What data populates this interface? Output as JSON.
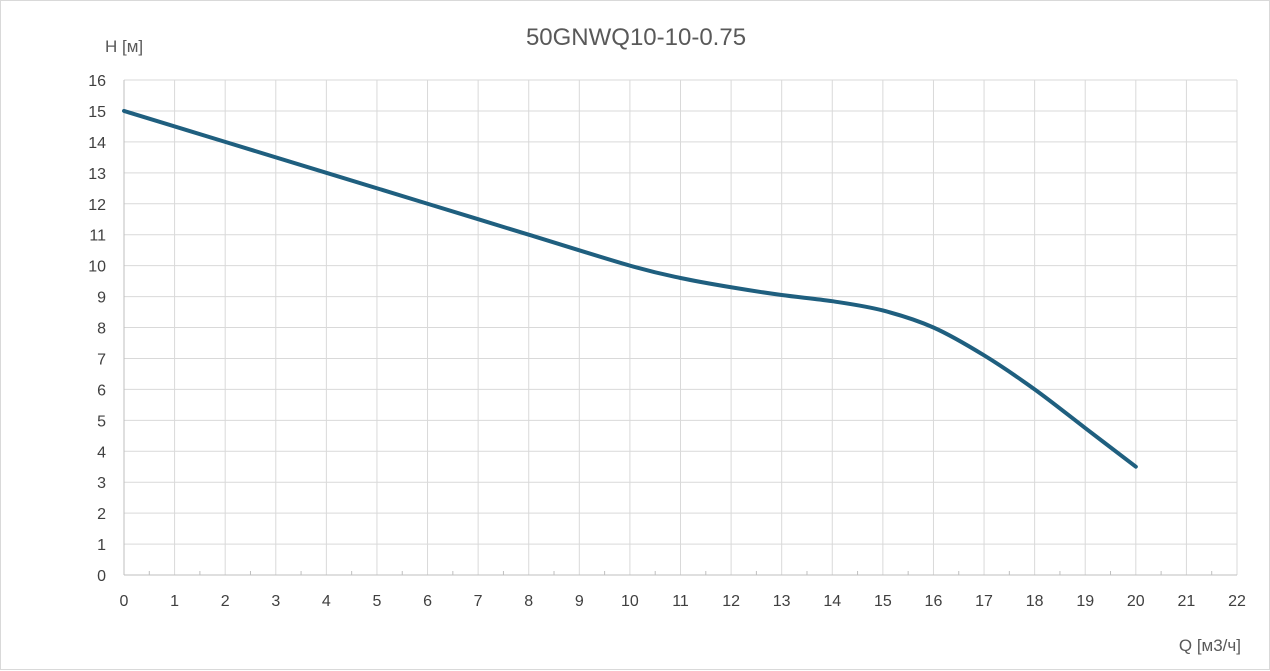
{
  "chart_data": {
    "type": "line",
    "title": "50GNWQ10-10-0.75",
    "xlabel": "Q [м3/ч]",
    "ylabel": "H [м]",
    "xlim": [
      0,
      22
    ],
    "ylim": [
      0,
      16
    ],
    "xticks": [
      0,
      1,
      2,
      3,
      4,
      5,
      6,
      7,
      8,
      9,
      10,
      11,
      12,
      13,
      14,
      15,
      16,
      17,
      18,
      19,
      20,
      21,
      22
    ],
    "yticks": [
      0,
      1,
      2,
      3,
      4,
      5,
      6,
      7,
      8,
      9,
      10,
      11,
      12,
      13,
      14,
      15,
      16
    ],
    "grid": true,
    "legend": "none",
    "series": [
      {
        "color": "#1f5f7f",
        "x": [
          0,
          2,
          4,
          6,
          8,
          10,
          11,
          12,
          13,
          14,
          15,
          16,
          17,
          18,
          19,
          20
        ],
        "y": [
          15,
          14,
          13,
          12,
          11,
          10,
          9.6,
          9.3,
          9.05,
          8.85,
          8.55,
          8.0,
          7.1,
          6.0,
          4.75,
          3.5
        ]
      }
    ]
  }
}
